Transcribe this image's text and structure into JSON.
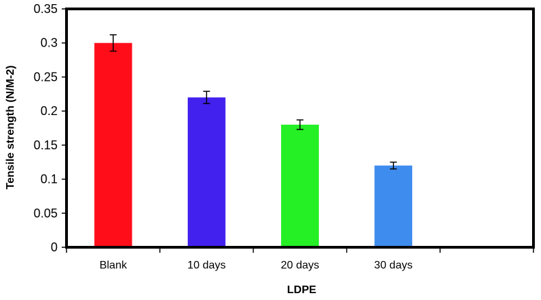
{
  "chart_data": {
    "type": "bar",
    "title": "",
    "xlabel": "LDPE",
    "ylabel": "Tensile strength (N/M-2)",
    "categories": [
      "Blank",
      "10 days",
      "20 days",
      "30 days",
      ""
    ],
    "values": [
      0.3,
      0.22,
      0.18,
      0.12,
      null
    ],
    "errors": [
      0.012,
      0.009,
      0.007,
      0.005,
      null
    ],
    "colors": [
      "#ff0e1a",
      "#4220ee",
      "#25ef25",
      "#3e8cee",
      null
    ],
    "ylim": [
      0,
      0.35
    ],
    "yticks": [
      0,
      0.05,
      0.1,
      0.15,
      0.2,
      0.25,
      0.3,
      0.35
    ],
    "ytick_labels": [
      "0",
      "0.05",
      "0.1",
      "0.15",
      "0.2",
      "0.25",
      "0.3",
      "0.35"
    ],
    "grid": false,
    "legend": "none"
  }
}
